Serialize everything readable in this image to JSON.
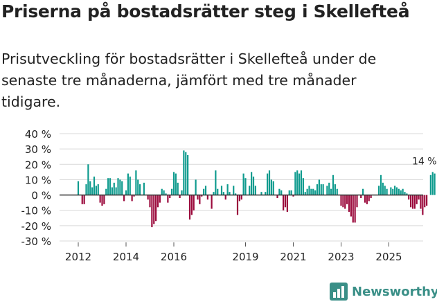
{
  "title": "Priserna på bostadsrätter steg i Skellefteå",
  "subtitle": "Prisutveckling för bostadsrätter i Skellefteå under de senaste tre månaderna, jämfört med tre månader tidigare.",
  "brand": "Newsworthy",
  "colors": {
    "positive": "#0f9b8e",
    "negative": "#9b0a3c",
    "zero_line": "#333333",
    "grid": "#d9d9d9",
    "text": "#222222",
    "brand": "#3a8f87"
  },
  "chart_data": {
    "type": "bar",
    "title": "Priserna på bostadsrätter steg i Skellefteå",
    "xlabel": "",
    "ylabel": "",
    "ylim": [
      -30,
      40
    ],
    "y_ticks": [
      40,
      30,
      20,
      10,
      0,
      -10,
      -20,
      -30
    ],
    "y_tick_labels": [
      "40 %",
      "30 %",
      "20 %",
      "10 %",
      "0 %",
      "-10 %",
      "-20 %",
      "-30 %"
    ],
    "x_ticks": [
      2012,
      2014,
      2016,
      2019,
      2021,
      2023,
      2025
    ],
    "x_tick_labels": [
      "2012",
      "2014",
      "2016",
      "2019",
      "2021",
      "2023",
      "2025"
    ],
    "start_year": 2012,
    "start_month": 1,
    "values": [
      9,
      0,
      -6,
      -6,
      7,
      20,
      9,
      5,
      12,
      6,
      7,
      -5,
      -7,
      -6,
      4,
      11,
      11,
      5,
      8,
      5,
      11,
      10,
      9,
      -4,
      3,
      14,
      12,
      -4,
      -1,
      16,
      10,
      7,
      0,
      8,
      0,
      -3,
      -8,
      -21,
      -19,
      -17,
      -8,
      -5,
      4,
      3,
      1,
      -5,
      -2,
      4,
      15,
      14,
      8,
      -2,
      3,
      29,
      28,
      26,
      -16,
      -13,
      -10,
      10,
      -3,
      -6,
      -1,
      4,
      6,
      -3,
      0,
      -9,
      2,
      16,
      4,
      0,
      6,
      2,
      -3,
      7,
      2,
      0,
      6,
      1,
      -13,
      -4,
      -3,
      14,
      11,
      0,
      6,
      15,
      12,
      6,
      0,
      0,
      2,
      0,
      2,
      14,
      16,
      10,
      9,
      0,
      -2,
      4,
      3,
      -10,
      -8,
      -11,
      3,
      3,
      -1,
      15,
      16,
      14,
      16,
      11,
      2,
      4,
      6,
      4,
      4,
      3,
      7,
      10,
      7,
      7,
      0,
      6,
      8,
      4,
      13,
      7,
      4,
      0,
      -7,
      -8,
      -9,
      -6,
      -11,
      -14,
      -18,
      -18,
      -8,
      0,
      -2,
      4,
      -5,
      -6,
      -4,
      -2,
      0,
      0,
      0,
      6,
      13,
      8,
      6,
      4,
      0,
      5,
      4,
      6,
      5,
      4,
      3,
      4,
      2,
      1,
      -3,
      -8,
      -9,
      -9,
      -6,
      -3,
      -9,
      -13,
      -8,
      -7,
      0,
      13,
      15,
      14
    ],
    "annotation": {
      "label": "14 %",
      "value": 14
    }
  }
}
